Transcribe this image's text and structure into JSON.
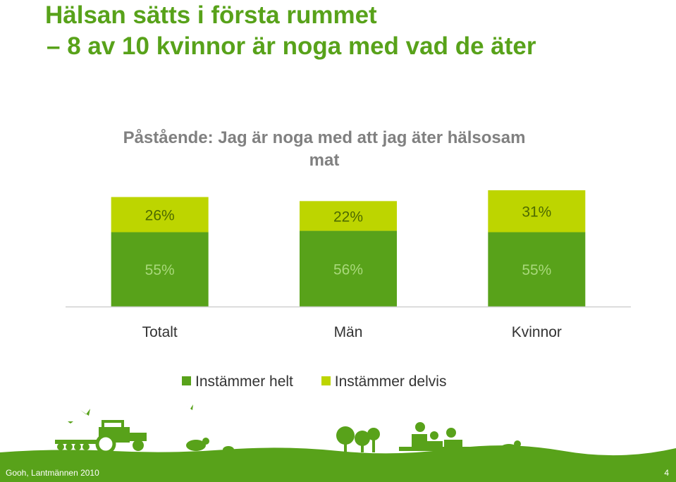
{
  "slide": {
    "title_line1": "Hälsan sätts i första rummet",
    "title_line2": "– 8 av 10 kvinnor är noga med vad de äter",
    "footer_source": "Gooh, Lantmännen 2010",
    "page_number": "4"
  },
  "colors": {
    "accent": "#58a21a",
    "series_helt": "#58a21a",
    "series_delvis": "#bdd500",
    "footer_bg": "#58a21a"
  },
  "chart_data": {
    "type": "bar",
    "stacked": true,
    "title": "Påstående: Jag är noga med att jag äter hälsosam mat",
    "categories": [
      "Totalt",
      "Män",
      "Kvinnor"
    ],
    "series": [
      {
        "name": "Instämmer helt",
        "values": [
          55,
          56,
          55
        ],
        "color": "#58a21a"
      },
      {
        "name": "Instämmer delvis",
        "values": [
          26,
          22,
          31
        ],
        "color": "#bdd500"
      }
    ],
    "data_labels": [
      [
        "55%",
        "56%",
        "55%"
      ],
      [
        "26%",
        "22%",
        "31%"
      ]
    ],
    "ylim": [
      0,
      86
    ],
    "legend_position": "bottom",
    "grid": false
  }
}
